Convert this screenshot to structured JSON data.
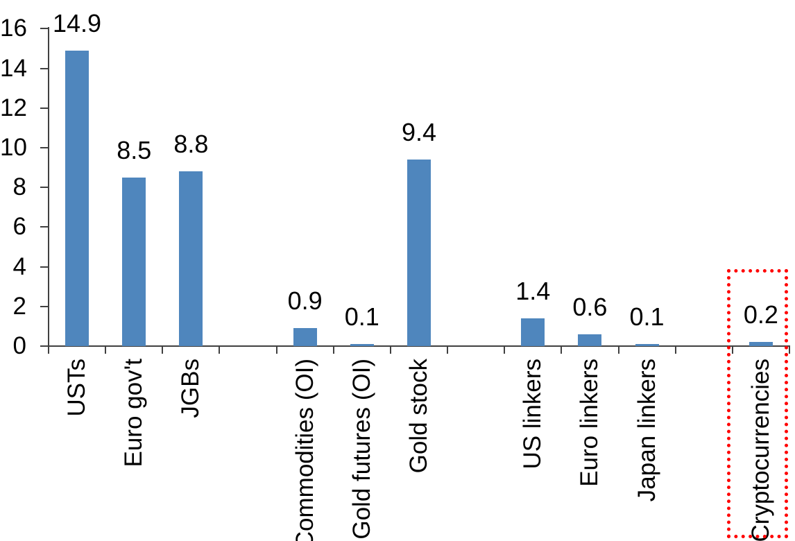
{
  "chart_data": {
    "type": "bar",
    "title": "",
    "xlabel": "",
    "ylabel": "",
    "categories": [
      "USTs",
      "Euro gov't",
      "JGBs",
      "Commodities (OI)",
      "Gold futures (OI)",
      "Gold stock",
      "US linkers",
      "Euro linkers",
      "Japan linkers",
      "Cryptocurrencies"
    ],
    "values": [
      14.9,
      8.5,
      8.8,
      0.9,
      0.1,
      9.4,
      1.4,
      0.6,
      0.1,
      0.2
    ],
    "value_labels": [
      "14.9",
      "8.5",
      "8.8",
      "0.9",
      "0.1",
      "9.4",
      "1.4",
      "0.6",
      "0.1",
      "0.2"
    ],
    "slots": [
      0,
      1,
      2,
      4,
      5,
      6,
      8,
      9,
      10,
      12
    ],
    "total_slots": 13,
    "group_gaps_after": [
      "JGBs",
      "Gold stock",
      "Japan linkers"
    ],
    "ylim": [
      0,
      16
    ],
    "y_ticks": [
      0,
      2,
      4,
      6,
      8,
      10,
      12,
      14,
      16
    ],
    "y_tick_labels": [
      "0",
      "2",
      "4",
      "6",
      "8",
      "10",
      "12",
      "14",
      "16"
    ],
    "grid": false,
    "legend": false,
    "bar_color": "#4F86BD",
    "axis_color": "#404040",
    "text_color": "#000000",
    "highlight": {
      "target_category": "Cryptocurrencies",
      "shape": "red-dotted-rectangle",
      "color": "#FF0000"
    }
  }
}
